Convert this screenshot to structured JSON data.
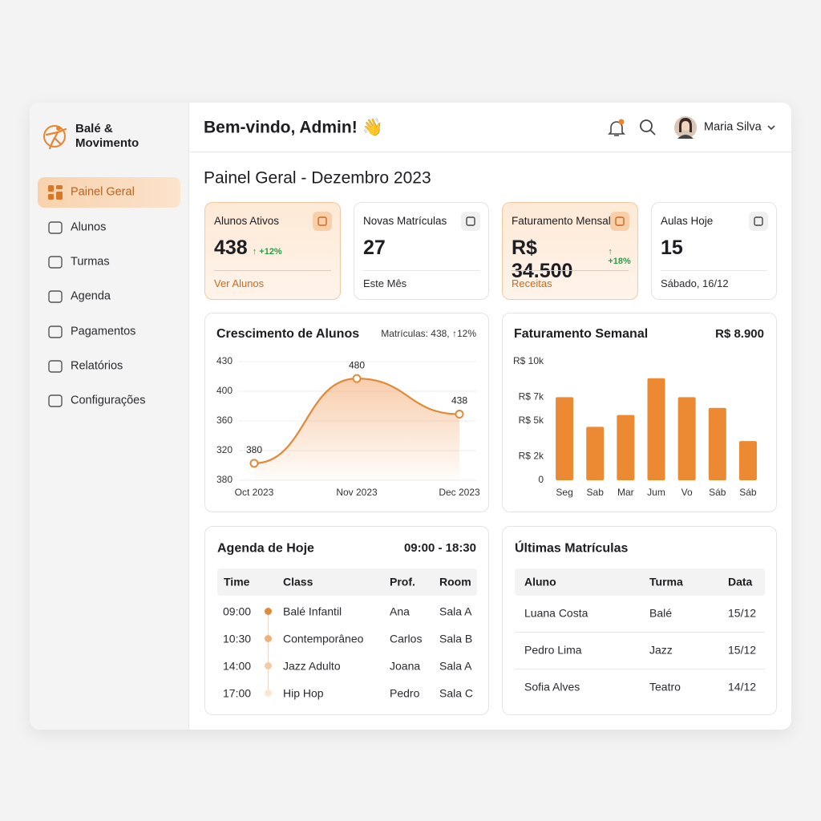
{
  "sidebar": {
    "brand": [
      "Balé &",
      "Movimento"
    ],
    "nav": [
      "Painel Geral",
      "Alunos",
      "Turmas",
      "Agenda",
      "Pagamentos",
      "Relatórios",
      "Configurações"
    ]
  },
  "header": {
    "greeting": "Bem-vindo, Admin! 👋",
    "user": "Maria Silva"
  },
  "page_title": "Painel Geral - Dezembro 2023",
  "kpis": [
    {
      "label": "Alunos Ativos",
      "value": "438",
      "change": "↑ +12%",
      "footer": "Ver Alunos"
    },
    {
      "label": "Novas Matrículas",
      "value": "27",
      "footer": "Este Mês"
    },
    {
      "label": "Faturamento Mensal",
      "value": "R$ 34.500",
      "change": "↑ +18%",
      "footer": "Receitas"
    },
    {
      "label": "Aulas Hoje",
      "value": "15",
      "footer": "Sábado, 16/12"
    }
  ],
  "chart_data": [
    {
      "type": "line",
      "title": "Crescimento de Alunos",
      "subtitle": "Matrículas: 438, ↑12%",
      "categories": [
        "Oct 2023",
        "Nov 2023",
        "Dec 2023"
      ],
      "values": [
        380,
        480,
        438
      ],
      "color": "#e08a3c",
      "ylim": [
        360,
        500
      ],
      "y_axis_labels": [
        "430",
        "400",
        "360",
        "320",
        "380"
      ],
      "grid": true
    },
    {
      "type": "bar",
      "title": "Faturamento Semanal",
      "subtitle": "R$ 8.900",
      "categories": [
        "Seg",
        "Sab",
        "Mar",
        "Jum",
        "Vo",
        "Sáb",
        "Sáb"
      ],
      "values": [
        7000,
        4500,
        5500,
        8600,
        7000,
        6100,
        3300
      ],
      "color": "#ec8a34",
      "ylim": [
        0,
        10000
      ],
      "yticks": [
        {
          "value": 10000,
          "label": "R$ 10k"
        },
        {
          "value": 7000,
          "label": "R$ 7k"
        },
        {
          "value": 5000,
          "label": "R$ 5k"
        },
        {
          "value": 2000,
          "label": "R$ 2k"
        },
        0
      ],
      "grid": false
    }
  ],
  "agenda": {
    "title": "Agenda de Hoje",
    "range": "09:00 - 18:30",
    "columns": [
      "Time",
      "Class",
      "Prof.",
      "Room"
    ],
    "rows": [
      [
        "09:00",
        "Balé Infantil",
        "Ana",
        "Sala A"
      ],
      [
        "10:30",
        "Contemporâneo",
        "Carlos",
        "Sala B"
      ],
      [
        "14:00",
        "Jazz Adulto",
        "Joana",
        "Sala A"
      ],
      [
        "17:00",
        "Hip Hop",
        "Pedro",
        "Sala C"
      ]
    ]
  },
  "enrollments": {
    "title": "Últimas Matrículas",
    "columns": [
      "Aluno",
      "Turma",
      "Data"
    ],
    "rows": [
      [
        "Luana Costa",
        "Balé",
        "15/12"
      ],
      [
        "Pedro Lima",
        "Jazz",
        "15/12"
      ],
      [
        "Sofia Alves",
        "Teatro",
        "14/12"
      ]
    ]
  }
}
